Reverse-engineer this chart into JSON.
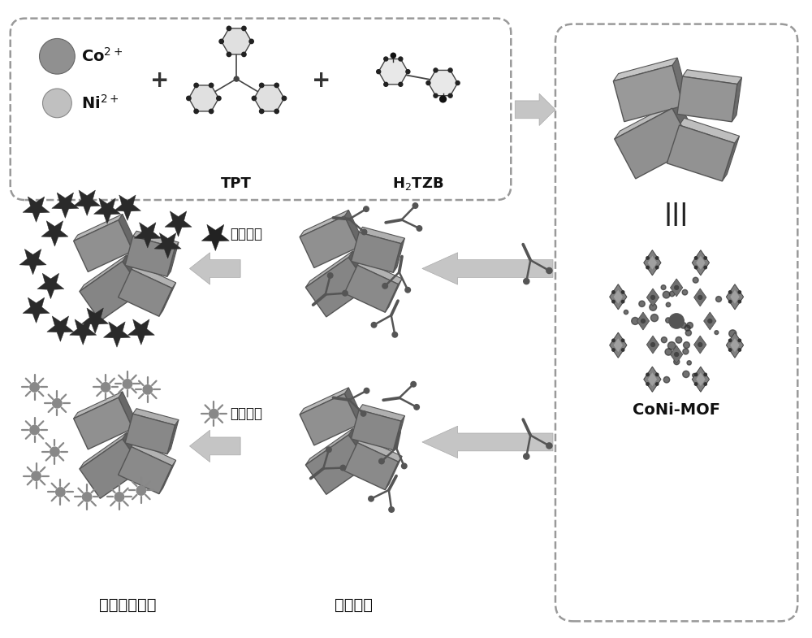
{
  "bg_color": "#ffffff",
  "fig_width": 10.0,
  "fig_height": 7.85,
  "dpi": 100,
  "labels": {
    "Co2+": "Co$^{2+}$",
    "Ni2+": "Ni$^{2+}$",
    "TPT": "TPT",
    "H2TZB": "H$_{2}$TZB",
    "CoNiMOF": "CoNi-MOF",
    "vomit_toxin": "呀吐毒素",
    "sardinol": "沙丁胺醇",
    "detect": "检测有害物质",
    "fix_antibody": "固定抗体"
  }
}
